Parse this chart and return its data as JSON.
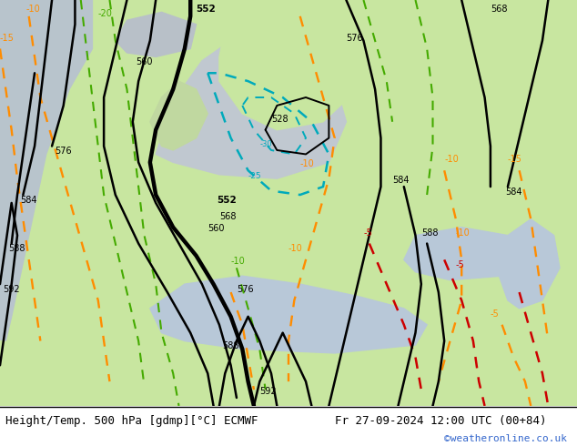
{
  "title_left": "Height/Temp. 500 hPa [gdmp][°C] ECMWF",
  "title_right": "Fr 27-09-2024 12:00 UTC (00+84)",
  "credit": "©weatheronline.co.uk",
  "land_color": "#c8e6a0",
  "ocean_color": "#b8c4cc",
  "white_bg": "#ffffff",
  "title_fontsize": 9,
  "credit_fontsize": 8,
  "credit_color": "#3366cc"
}
